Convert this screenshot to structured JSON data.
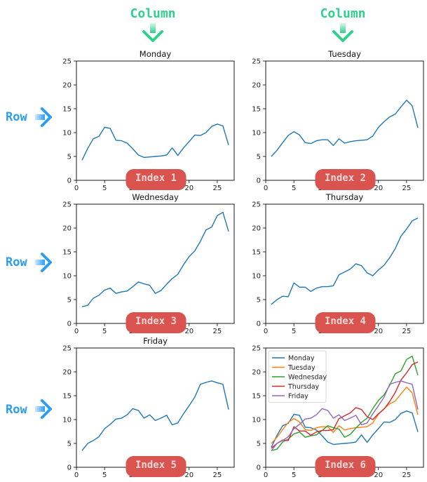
{
  "headers": {
    "column_label": "Column",
    "row_label": "Row"
  },
  "colors": {
    "header_green": "#2fcf8c",
    "row_blue": "#2a9df4",
    "badge_red": "#d9534f",
    "badge_text": "#f6d6d4"
  },
  "icons": {
    "column_arrow": "arrow-down-icon",
    "row_arrow": "arrow-right-icon"
  },
  "chart_data": [
    {
      "type": "line",
      "title": "Monday",
      "index_label": "Index 1",
      "x": [
        1,
        2,
        3,
        4,
        5,
        6,
        7,
        8,
        9,
        10,
        11,
        12,
        13,
        14,
        15,
        16,
        17,
        18,
        19,
        20,
        21,
        22,
        23,
        24,
        25,
        26,
        27
      ],
      "series": [
        {
          "name": "Monday",
          "color": "#1f77b4",
          "values": [
            4.2,
            6.7,
            8.7,
            9.2,
            11.1,
            10.9,
            8.4,
            8.3,
            7.8,
            6.6,
            5.3,
            4.8,
            4.9,
            5.0,
            5.1,
            5.3,
            6.8,
            5.2,
            6.8,
            8.1,
            9.5,
            9.4,
            10.0,
            11.3,
            11.8,
            11.4,
            7.4
          ]
        }
      ],
      "xlim": [
        0,
        28
      ],
      "ylim": [
        0,
        25
      ],
      "xticks": [
        0,
        5,
        10,
        15,
        20,
        25
      ],
      "yticks": [
        0,
        5,
        10,
        15,
        20,
        25
      ]
    },
    {
      "type": "line",
      "title": "Tuesday",
      "index_label": "Index 2",
      "x": [
        1,
        2,
        3,
        4,
        5,
        6,
        7,
        8,
        9,
        10,
        11,
        12,
        13,
        14,
        15,
        16,
        17,
        18,
        19,
        20,
        21,
        22,
        23,
        24,
        25,
        26,
        27
      ],
      "series": [
        {
          "name": "Tuesday",
          "color": "#1f77b4",
          "values": [
            5.0,
            6.3,
            7.9,
            9.4,
            10.2,
            9.5,
            7.9,
            7.7,
            8.3,
            8.5,
            8.5,
            7.3,
            8.7,
            7.8,
            8.1,
            8.3,
            8.4,
            8.5,
            9.3,
            11.1,
            12.3,
            13.3,
            13.9,
            15.4,
            16.8,
            15.6,
            11.0
          ]
        }
      ],
      "xlim": [
        0,
        28
      ],
      "ylim": [
        0,
        25
      ],
      "xticks": [
        0,
        5,
        10,
        15,
        20,
        25
      ],
      "yticks": [
        0,
        5,
        10,
        15,
        20,
        25
      ]
    },
    {
      "type": "line",
      "title": "Wednesday",
      "index_label": "Index 3",
      "x": [
        1,
        2,
        3,
        4,
        5,
        6,
        7,
        8,
        9,
        10,
        11,
        12,
        13,
        14,
        15,
        16,
        17,
        18,
        19,
        20,
        21,
        22,
        23,
        24,
        25,
        26,
        27
      ],
      "series": [
        {
          "name": "Wednesday",
          "color": "#1f77b4",
          "values": [
            3.5,
            3.8,
            5.3,
            5.9,
            7.0,
            7.4,
            6.3,
            6.6,
            6.8,
            7.7,
            8.7,
            8.3,
            8.0,
            6.3,
            6.9,
            8.2,
            9.4,
            10.3,
            12.3,
            14.0,
            15.2,
            17.2,
            19.6,
            20.2,
            22.6,
            23.3,
            19.3
          ]
        }
      ],
      "xlim": [
        0,
        28
      ],
      "ylim": [
        0,
        25
      ],
      "xticks": [
        0,
        5,
        10,
        15,
        20,
        25
      ],
      "yticks": [
        0,
        5,
        10,
        15,
        20,
        25
      ]
    },
    {
      "type": "line",
      "title": "Thursday",
      "index_label": "Index 4",
      "x": [
        1,
        2,
        3,
        4,
        5,
        6,
        7,
        8,
        9,
        10,
        11,
        12,
        13,
        14,
        15,
        16,
        17,
        18,
        19,
        20,
        21,
        22,
        23,
        24,
        25,
        26,
        27
      ],
      "series": [
        {
          "name": "Thursday",
          "color": "#1f77b4",
          "values": [
            4.0,
            5.0,
            5.7,
            5.6,
            8.5,
            7.6,
            7.6,
            6.7,
            7.4,
            7.7,
            7.7,
            7.9,
            10.2,
            10.8,
            11.4,
            12.5,
            12.1,
            10.6,
            10.0,
            11.2,
            12.2,
            13.8,
            15.7,
            18.3,
            19.8,
            21.5,
            22.1
          ]
        }
      ],
      "xlim": [
        0,
        28
      ],
      "ylim": [
        0,
        25
      ],
      "xticks": [
        0,
        5,
        10,
        15,
        20,
        25
      ],
      "yticks": [
        0,
        5,
        10,
        15,
        20,
        25
      ]
    },
    {
      "type": "line",
      "title": "Friday",
      "index_label": "Index 5",
      "x": [
        1,
        2,
        3,
        4,
        5,
        6,
        7,
        8,
        9,
        10,
        11,
        12,
        13,
        14,
        15,
        16,
        17,
        18,
        19,
        20,
        21,
        22,
        23,
        24,
        25,
        26,
        27
      ],
      "series": [
        {
          "name": "Friday",
          "color": "#1f77b4",
          "values": [
            3.5,
            5.0,
            5.6,
            6.4,
            8.1,
            9.0,
            10.1,
            10.3,
            11.0,
            12.3,
            11.9,
            10.3,
            11.0,
            9.8,
            10.3,
            10.9,
            8.9,
            9.3,
            11.2,
            12.9,
            14.7,
            17.4,
            17.8,
            18.1,
            17.7,
            17.4,
            12.1
          ]
        }
      ],
      "xlim": [
        0,
        28
      ],
      "ylim": [
        0,
        25
      ],
      "xticks": [
        0,
        5,
        10,
        15,
        20,
        25
      ],
      "yticks": [
        0,
        5,
        10,
        15,
        20,
        25
      ]
    },
    {
      "type": "line",
      "title": "",
      "index_label": "Index 6",
      "legend": "upper-left",
      "x": [
        1,
        2,
        3,
        4,
        5,
        6,
        7,
        8,
        9,
        10,
        11,
        12,
        13,
        14,
        15,
        16,
        17,
        18,
        19,
        20,
        21,
        22,
        23,
        24,
        25,
        26,
        27
      ],
      "series": [
        {
          "name": "Monday",
          "color": "#1f77b4",
          "values": [
            4.2,
            6.7,
            8.7,
            9.2,
            11.1,
            10.9,
            8.4,
            8.3,
            7.8,
            6.6,
            5.3,
            4.8,
            4.9,
            5.0,
            5.1,
            5.3,
            6.8,
            5.2,
            6.8,
            8.1,
            9.5,
            9.4,
            10.0,
            11.3,
            11.8,
            11.4,
            7.4
          ]
        },
        {
          "name": "Tuesday",
          "color": "#ff7f0e",
          "values": [
            5.0,
            6.3,
            7.9,
            9.4,
            10.2,
            9.5,
            7.9,
            7.7,
            8.3,
            8.5,
            8.5,
            7.3,
            8.7,
            7.8,
            8.1,
            8.3,
            8.4,
            8.5,
            9.3,
            11.1,
            12.3,
            13.3,
            13.9,
            15.4,
            16.8,
            15.6,
            11.0
          ]
        },
        {
          "name": "Wednesday",
          "color": "#2ca02c",
          "values": [
            3.5,
            3.8,
            5.3,
            5.9,
            7.0,
            7.4,
            6.3,
            6.6,
            6.8,
            7.7,
            8.7,
            8.3,
            8.0,
            6.3,
            6.9,
            8.2,
            9.4,
            10.3,
            12.3,
            14.0,
            15.2,
            17.2,
            19.6,
            20.2,
            22.6,
            23.3,
            19.3
          ]
        },
        {
          "name": "Thursday",
          "color": "#d62728",
          "values": [
            4.0,
            5.0,
            5.7,
            5.6,
            8.5,
            7.6,
            7.6,
            6.7,
            7.4,
            7.7,
            7.7,
            7.9,
            10.2,
            10.8,
            11.4,
            12.5,
            12.1,
            10.6,
            10.0,
            11.2,
            12.2,
            13.8,
            15.7,
            18.3,
            19.8,
            21.5,
            22.1
          ]
        },
        {
          "name": "Friday",
          "color": "#9467bd",
          "values": [
            3.5,
            5.0,
            5.6,
            6.4,
            8.1,
            9.0,
            10.1,
            10.3,
            11.0,
            12.3,
            11.9,
            10.3,
            11.0,
            9.8,
            10.3,
            10.9,
            8.9,
            9.3,
            11.2,
            12.9,
            14.7,
            17.4,
            17.8,
            18.1,
            17.7,
            17.4,
            12.1
          ]
        }
      ],
      "xlim": [
        0,
        28
      ],
      "ylim": [
        0,
        25
      ],
      "xticks": [
        0,
        5,
        10,
        15,
        20,
        25
      ],
      "yticks": [
        0,
        5,
        10,
        15,
        20,
        25
      ]
    }
  ]
}
